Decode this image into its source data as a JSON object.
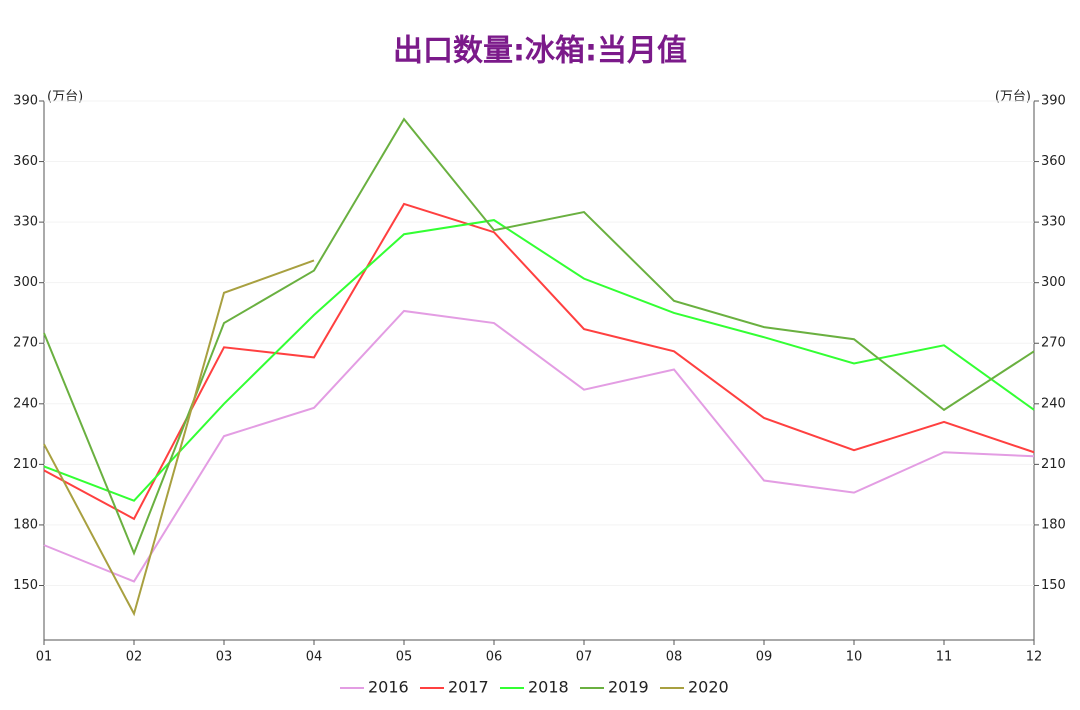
{
  "chart_data": {
    "type": "line",
    "title": "出口数量:冰箱:当月值",
    "y_label": "(万台)",
    "y2_label": "(万台)",
    "categories": [
      "01",
      "02",
      "03",
      "04",
      "05",
      "06",
      "07",
      "08",
      "09",
      "10",
      "11",
      "12"
    ],
    "series": [
      {
        "name": "2016",
        "color": "#e39de3",
        "values": [
          170,
          152,
          224,
          238,
          286,
          280,
          247,
          257,
          202,
          196,
          216,
          214
        ]
      },
      {
        "name": "2017",
        "color": "#ff4040",
        "values": [
          207,
          183,
          268,
          263,
          339,
          325,
          277,
          266,
          233,
          217,
          231,
          216
        ]
      },
      {
        "name": "2018",
        "color": "#33ff33",
        "values": [
          209,
          192,
          240,
          284,
          324,
          331,
          302,
          285,
          273,
          260,
          269,
          237
        ]
      },
      {
        "name": "2019",
        "color": "#6ab040",
        "values": [
          275,
          166,
          280,
          306,
          381,
          326,
          335,
          291,
          278,
          272,
          237,
          266
        ]
      },
      {
        "name": "2020",
        "color": "#a8a040",
        "values": [
          220,
          136,
          295,
          311,
          null,
          null,
          null,
          null,
          null,
          null,
          null,
          null
        ]
      }
    ],
    "ylim": [
      123,
      390
    ],
    "yticks": [
      150,
      180,
      210,
      240,
      270,
      300,
      330,
      360,
      390
    ],
    "y2lim": [
      123,
      390
    ],
    "y2ticks": [
      150,
      180,
      210,
      240,
      270,
      300,
      330,
      360,
      390
    ],
    "grid": true,
    "legend": "bottom"
  }
}
